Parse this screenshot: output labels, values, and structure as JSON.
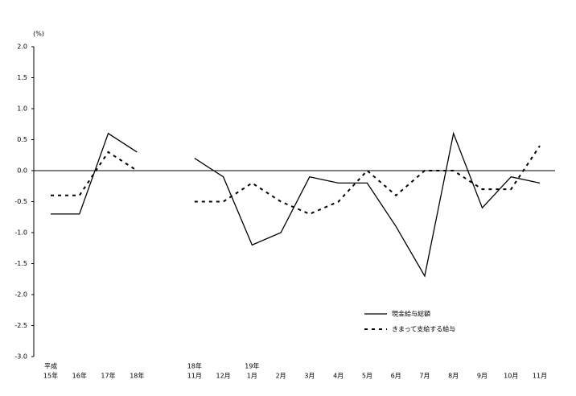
{
  "chart_data": {
    "type": "line",
    "y_unit": "(%)",
    "categories": [
      "15年",
      "16年",
      "17年",
      "18年",
      null,
      "11月",
      "12月",
      "1月",
      "2月",
      "3月",
      "4月",
      "5月",
      "6月",
      "7月",
      "8月",
      "9月",
      "10月",
      "11月"
    ],
    "category_upper": [
      "平成",
      null,
      null,
      null,
      null,
      "18年",
      null,
      "19年",
      null,
      null,
      null,
      null,
      null,
      null,
      null,
      null,
      null,
      null
    ],
    "series": [
      {
        "name": "現金給与総額",
        "color": "#000000",
        "dash": "solid",
        "values": [
          -0.7,
          -0.7,
          0.6,
          0.3,
          null,
          0.2,
          -0.1,
          -1.2,
          -1.0,
          -0.1,
          -0.2,
          -0.2,
          -0.9,
          -1.7,
          0.6,
          -0.6,
          -0.1,
          -0.2
        ]
      },
      {
        "name": "きまって支給する給与",
        "color": "#000000",
        "dash": "dashed",
        "values": [
          -0.4,
          -0.4,
          0.3,
          0.0,
          null,
          -0.5,
          -0.5,
          -0.2,
          -0.5,
          -0.7,
          -0.5,
          0.0,
          -0.4,
          0.0,
          0.0,
          -0.3,
          -0.3,
          0.4
        ]
      }
    ],
    "ylim": [
      -3.0,
      2.0
    ],
    "yticks": [
      {
        "value": 2.0,
        "label": "2.0"
      },
      1.5,
      {
        "value": 1.0,
        "label": "1.0"
      },
      0.5,
      {
        "value": 0,
        "label": "0.0"
      },
      -0.5,
      {
        "value": -1.0,
        "label": "-1.0"
      },
      -1.5,
      {
        "value": -2.0,
        "label": "-2.0"
      },
      -2.5,
      {
        "value": -3.0,
        "label": "-3.0"
      }
    ],
    "zero_line": true,
    "legend": "lower-right"
  }
}
